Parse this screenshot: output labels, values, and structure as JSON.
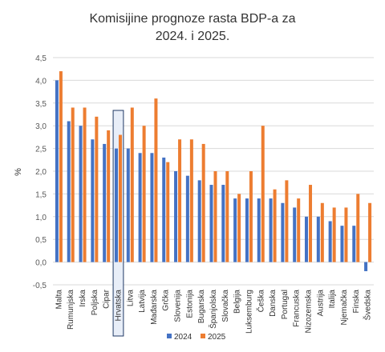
{
  "chart_data": {
    "type": "bar",
    "title_lines": [
      "Komisijine prognoze rasta BDP-a za",
      "2024. i 2025."
    ],
    "ylabel": "%",
    "ylim": [
      -0.5,
      4.5
    ],
    "yticks": [
      "-0,5",
      "0,0",
      "0,5",
      "1,0",
      "1,5",
      "2,0",
      "2,5",
      "3,0",
      "3,5",
      "4,0",
      "4,5"
    ],
    "grid": true,
    "legend_position": "bottom",
    "highlighted_category": "Hrvatska",
    "categories": [
      "Malta",
      "Rumunjska",
      "Irska",
      "Poljska",
      "Cipar",
      "Hrvatska",
      "Litva",
      "Latvija",
      "Mađarska",
      "Grčka",
      "Slovenija",
      "Estonija",
      "Bugarska",
      "Španjolska",
      "Slovačka",
      "Belgija",
      "Luksemburg",
      "Češka",
      "Danska",
      "Portugal",
      "Francuska",
      "Nizozemska",
      "Austrija",
      "Italija",
      "Njemačka",
      "Finska",
      "Švedska"
    ],
    "series": [
      {
        "name": "2024",
        "color": "#4472C4",
        "values": [
          4.0,
          3.1,
          3.0,
          2.7,
          2.6,
          2.5,
          2.5,
          2.4,
          2.4,
          2.3,
          2.0,
          1.9,
          1.8,
          1.7,
          1.7,
          1.4,
          1.4,
          1.4,
          1.4,
          1.3,
          1.2,
          1.0,
          1.0,
          0.9,
          0.8,
          0.8,
          -0.2
        ]
      },
      {
        "name": "2025",
        "color": "#ED7D31",
        "values": [
          4.2,
          3.4,
          3.4,
          3.2,
          2.9,
          2.8,
          3.4,
          3.0,
          3.6,
          2.2,
          2.7,
          2.7,
          2.6,
          2.0,
          2.0,
          1.5,
          2.0,
          3.0,
          1.6,
          1.8,
          1.4,
          1.7,
          1.3,
          1.2,
          1.2,
          1.5,
          1.3
        ]
      }
    ]
  }
}
